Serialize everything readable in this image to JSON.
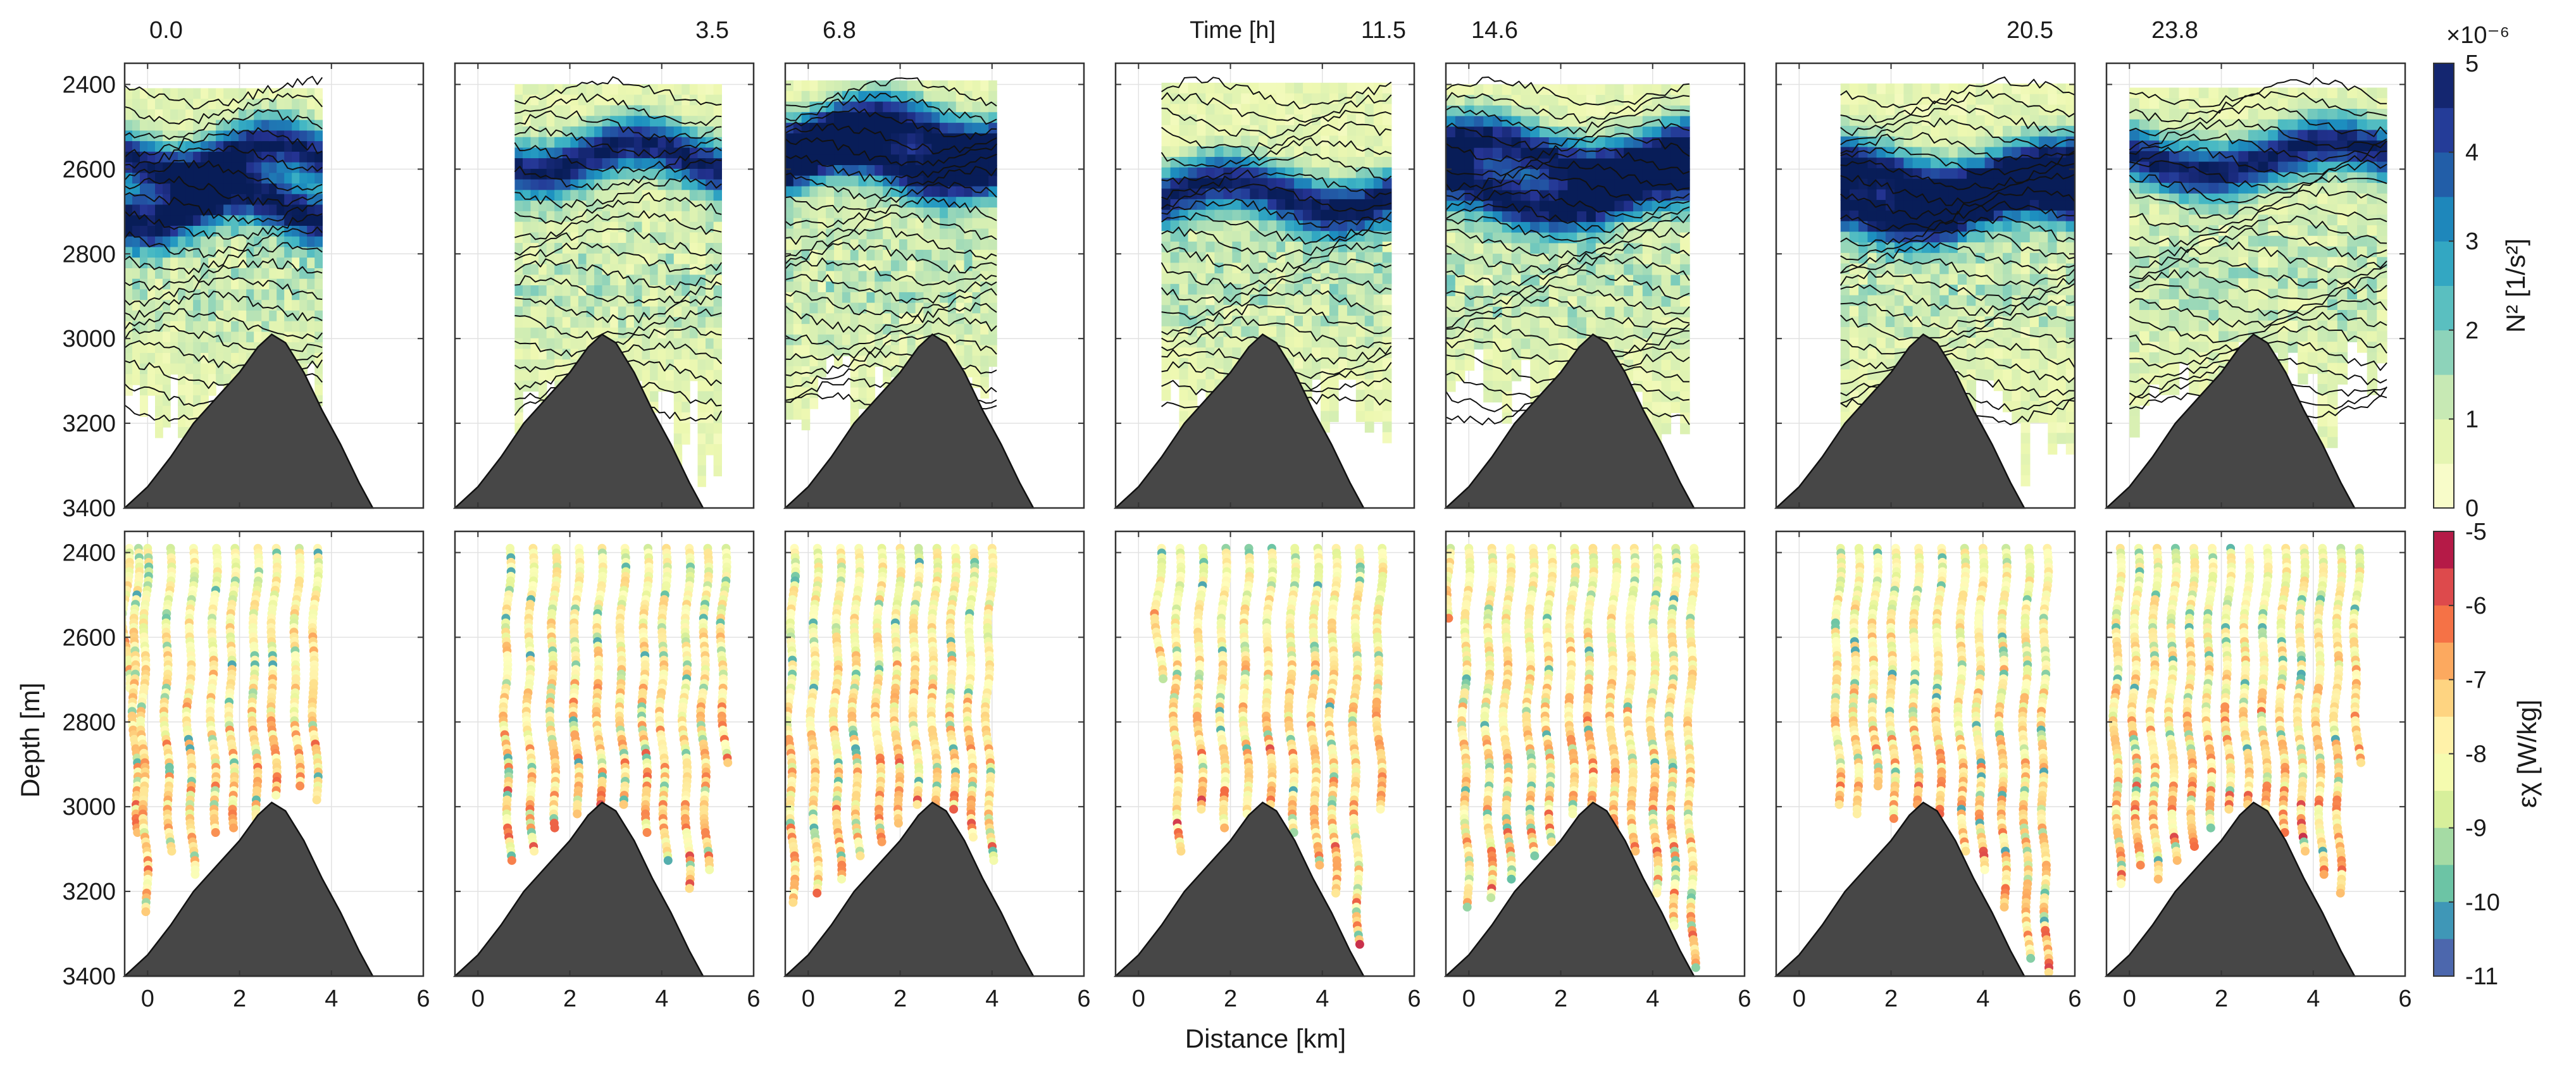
{
  "chart_data": {
    "type": "heatmap",
    "panel_times": [
      "0.0",
      "3.5",
      "6.8",
      "11.5",
      "14.6",
      "20.5",
      "23.8"
    ],
    "time_label": "Time [h]",
    "ylabel": "Depth [m]",
    "xlabel": "Distance [km]",
    "x_ticks": [
      "0",
      "2",
      "4",
      "6"
    ],
    "y_ticks": [
      "2400",
      "2600",
      "2800",
      "3000",
      "3200",
      "3400"
    ],
    "xlim": [
      -0.5,
      6
    ],
    "ylim": [
      3400,
      2350
    ],
    "ridge": {
      "x": [
        -0.5,
        0.0,
        0.5,
        1.0,
        1.5,
        2.0,
        2.4,
        2.7,
        3.0,
        3.4,
        3.8,
        4.2,
        4.6,
        4.9
      ],
      "depth": [
        3400,
        3350,
        3280,
        3200,
        3140,
        3080,
        3020,
        2990,
        3010,
        3080,
        3170,
        3250,
        3340,
        3400
      ]
    },
    "top_row": {
      "variable": "N²",
      "colorbar_label": "N² [1/s²]",
      "colorbar_exponent": "×10⁻⁶",
      "colorbar_ticks": [
        "0",
        "1",
        "2",
        "3",
        "4",
        "5"
      ],
      "range": [
        0,
        5e-06
      ],
      "colormap": "YlGnBu",
      "panels": [
        {
          "time": "0.0",
          "x_range": [
            -0.5,
            3.8
          ],
          "high_N2_depths": [
            2560,
            2680
          ],
          "isopycnals": 20
        },
        {
          "time": "3.5",
          "x_range": [
            0.8,
            5.3
          ],
          "high_N2_depths": [
            2560
          ],
          "isopycnals": 20
        },
        {
          "time": "6.8",
          "x_range": [
            -0.5,
            4.1
          ],
          "high_N2_depths": [
            2500,
            2580
          ],
          "isopycnals": 22
        },
        {
          "time": "11.5",
          "x_range": [
            0.5,
            5.5
          ],
          "high_N2_depths": [
            2650
          ],
          "isopycnals": 22
        },
        {
          "time": "14.6",
          "x_range": [
            -0.5,
            4.8
          ],
          "high_N2_depths": [
            2550,
            2650
          ],
          "isopycnals": 24
        },
        {
          "time": "20.5",
          "x_range": [
            0.9,
            6.0
          ],
          "high_N2_depths": [
            2600,
            2680
          ],
          "isopycnals": 24
        },
        {
          "time": "23.8",
          "x_range": [
            0.0,
            5.6
          ],
          "high_N2_depths": [
            2560
          ],
          "isopycnals": 24
        }
      ]
    },
    "bottom_row": {
      "variable": "epsilon_chi",
      "colorbar_label": "εχ [W/kg]",
      "colorbar_ticks": [
        "-5",
        "-6",
        "-7",
        "-8",
        "-9",
        "-10",
        "-11"
      ],
      "range": [
        -11,
        -5
      ],
      "colormap": "Spectral",
      "panels": [
        {
          "time": "0.0",
          "profiles": [
            {
              "x": -0.4,
              "bottom": 2720
            },
            {
              "x": -0.2,
              "bottom": 3060
            },
            {
              "x": 0.0,
              "bottom": 3250
            },
            {
              "x": 0.5,
              "bottom": 3110
            },
            {
              "x": 1.0,
              "bottom": 3160
            },
            {
              "x": 1.5,
              "bottom": 3060
            },
            {
              "x": 1.9,
              "bottom": 3050
            },
            {
              "x": 2.4,
              "bottom": 3030
            },
            {
              "x": 2.8,
              "bottom": 2970
            },
            {
              "x": 3.3,
              "bottom": 2950
            },
            {
              "x": 3.7,
              "bottom": 2980
            }
          ]
        },
        {
          "time": "3.5",
          "profiles": [
            {
              "x": 0.7,
              "bottom": 3130
            },
            {
              "x": 1.2,
              "bottom": 3100
            },
            {
              "x": 1.7,
              "bottom": 3050
            },
            {
              "x": 2.2,
              "bottom": 3020
            },
            {
              "x": 2.7,
              "bottom": 2990
            },
            {
              "x": 3.2,
              "bottom": 3000
            },
            {
              "x": 3.7,
              "bottom": 3060
            },
            {
              "x": 4.1,
              "bottom": 3130
            },
            {
              "x": 4.6,
              "bottom": 3190
            },
            {
              "x": 5.0,
              "bottom": 3150
            },
            {
              "x": 5.4,
              "bottom": 2900
            }
          ]
        },
        {
          "time": "6.8",
          "profiles": [
            {
              "x": -0.3,
              "bottom": 3230
            },
            {
              "x": 0.2,
              "bottom": 3200
            },
            {
              "x": 0.7,
              "bottom": 3170
            },
            {
              "x": 1.1,
              "bottom": 3120
            },
            {
              "x": 1.6,
              "bottom": 3080
            },
            {
              "x": 2.0,
              "bottom": 3040
            },
            {
              "x": 2.4,
              "bottom": 3000
            },
            {
              "x": 2.8,
              "bottom": 2990
            },
            {
              "x": 3.2,
              "bottom": 3010
            },
            {
              "x": 3.6,
              "bottom": 3070
            },
            {
              "x": 4.0,
              "bottom": 3130
            }
          ]
        },
        {
          "time": "11.5",
          "profiles": [
            {
              "x": 0.5,
              "bottom": 2700
            },
            {
              "x": 0.9,
              "bottom": 3100
            },
            {
              "x": 1.4,
              "bottom": 3010
            },
            {
              "x": 1.9,
              "bottom": 3050
            },
            {
              "x": 2.4,
              "bottom": 3020
            },
            {
              "x": 2.9,
              "bottom": 3000
            },
            {
              "x": 3.4,
              "bottom": 3060
            },
            {
              "x": 3.9,
              "bottom": 3140
            },
            {
              "x": 4.3,
              "bottom": 3200
            },
            {
              "x": 4.8,
              "bottom": 3330
            },
            {
              "x": 5.3,
              "bottom": 3010
            }
          ]
        },
        {
          "time": "14.6",
          "profiles": [
            {
              "x": -0.4,
              "bottom": 2560
            },
            {
              "x": 0.0,
              "bottom": 3240
            },
            {
              "x": 0.5,
              "bottom": 3220
            },
            {
              "x": 0.9,
              "bottom": 3170
            },
            {
              "x": 1.4,
              "bottom": 3120
            },
            {
              "x": 1.8,
              "bottom": 3080
            },
            {
              "x": 2.3,
              "bottom": 3020
            },
            {
              "x": 2.7,
              "bottom": 3000
            },
            {
              "x": 3.2,
              "bottom": 3050
            },
            {
              "x": 3.6,
              "bottom": 3110
            },
            {
              "x": 4.1,
              "bottom": 3200
            },
            {
              "x": 4.5,
              "bottom": 3280
            },
            {
              "x": 4.9,
              "bottom": 3380
            }
          ]
        },
        {
          "time": "20.5",
          "profiles": [
            {
              "x": 0.9,
              "bottom": 3000
            },
            {
              "x": 1.3,
              "bottom": 3020
            },
            {
              "x": 1.7,
              "bottom": 2950
            },
            {
              "x": 2.1,
              "bottom": 3030
            },
            {
              "x": 2.6,
              "bottom": 3000
            },
            {
              "x": 3.1,
              "bottom": 3020
            },
            {
              "x": 3.6,
              "bottom": 3100
            },
            {
              "x": 4.0,
              "bottom": 3150
            },
            {
              "x": 4.5,
              "bottom": 3240
            },
            {
              "x": 5.0,
              "bottom": 3360
            },
            {
              "x": 5.4,
              "bottom": 3390
            }
          ]
        },
        {
          "time": "23.8",
          "profiles": [
            {
              "x": -0.2,
              "bottom": 3180
            },
            {
              "x": 0.2,
              "bottom": 3140
            },
            {
              "x": 0.6,
              "bottom": 3170
            },
            {
              "x": 1.0,
              "bottom": 3130
            },
            {
              "x": 1.4,
              "bottom": 3090
            },
            {
              "x": 1.8,
              "bottom": 3050
            },
            {
              "x": 2.2,
              "bottom": 3010
            },
            {
              "x": 2.6,
              "bottom": 2990
            },
            {
              "x": 3.0,
              "bottom": 3020
            },
            {
              "x": 3.4,
              "bottom": 3060
            },
            {
              "x": 3.8,
              "bottom": 3110
            },
            {
              "x": 4.2,
              "bottom": 3160
            },
            {
              "x": 4.6,
              "bottom": 3200
            },
            {
              "x": 5.0,
              "bottom": 2900
            }
          ]
        }
      ]
    }
  }
}
